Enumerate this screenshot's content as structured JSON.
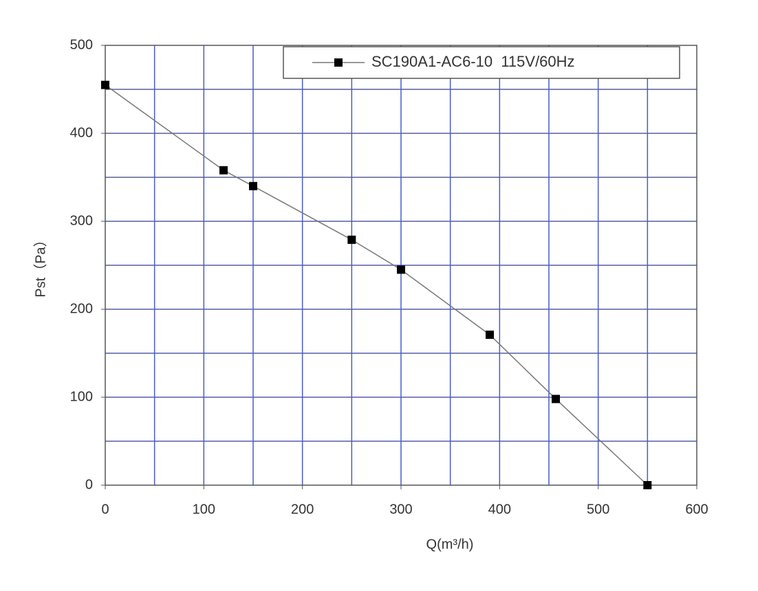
{
  "chart_data": {
    "type": "line",
    "xlabel": "Q(m³/h)",
    "ylabel": "Pst（Pa）",
    "x": [
      0,
      120,
      150,
      250,
      300,
      390,
      457,
      550
    ],
    "series": [
      {
        "name": "SC190A1-AC6-10  115V/60Hz",
        "color": "#000000",
        "values": [
          455,
          358,
          340,
          279,
          245,
          171,
          98,
          0
        ]
      }
    ],
    "xlim": [
      0,
      600
    ],
    "ylim": [
      0,
      500
    ],
    "xticks": [
      0,
      100,
      200,
      300,
      400,
      500,
      600
    ],
    "yticks": [
      0,
      100,
      200,
      300,
      400,
      500
    ],
    "xgrid": [
      50,
      100,
      150,
      200,
      250,
      300,
      350,
      400,
      450,
      500,
      550
    ],
    "ygrid": [
      50,
      100,
      150,
      200,
      250,
      300,
      350,
      400,
      450
    ],
    "grid": true,
    "grid_color": "#4a5bc8",
    "legend": "upper right"
  }
}
